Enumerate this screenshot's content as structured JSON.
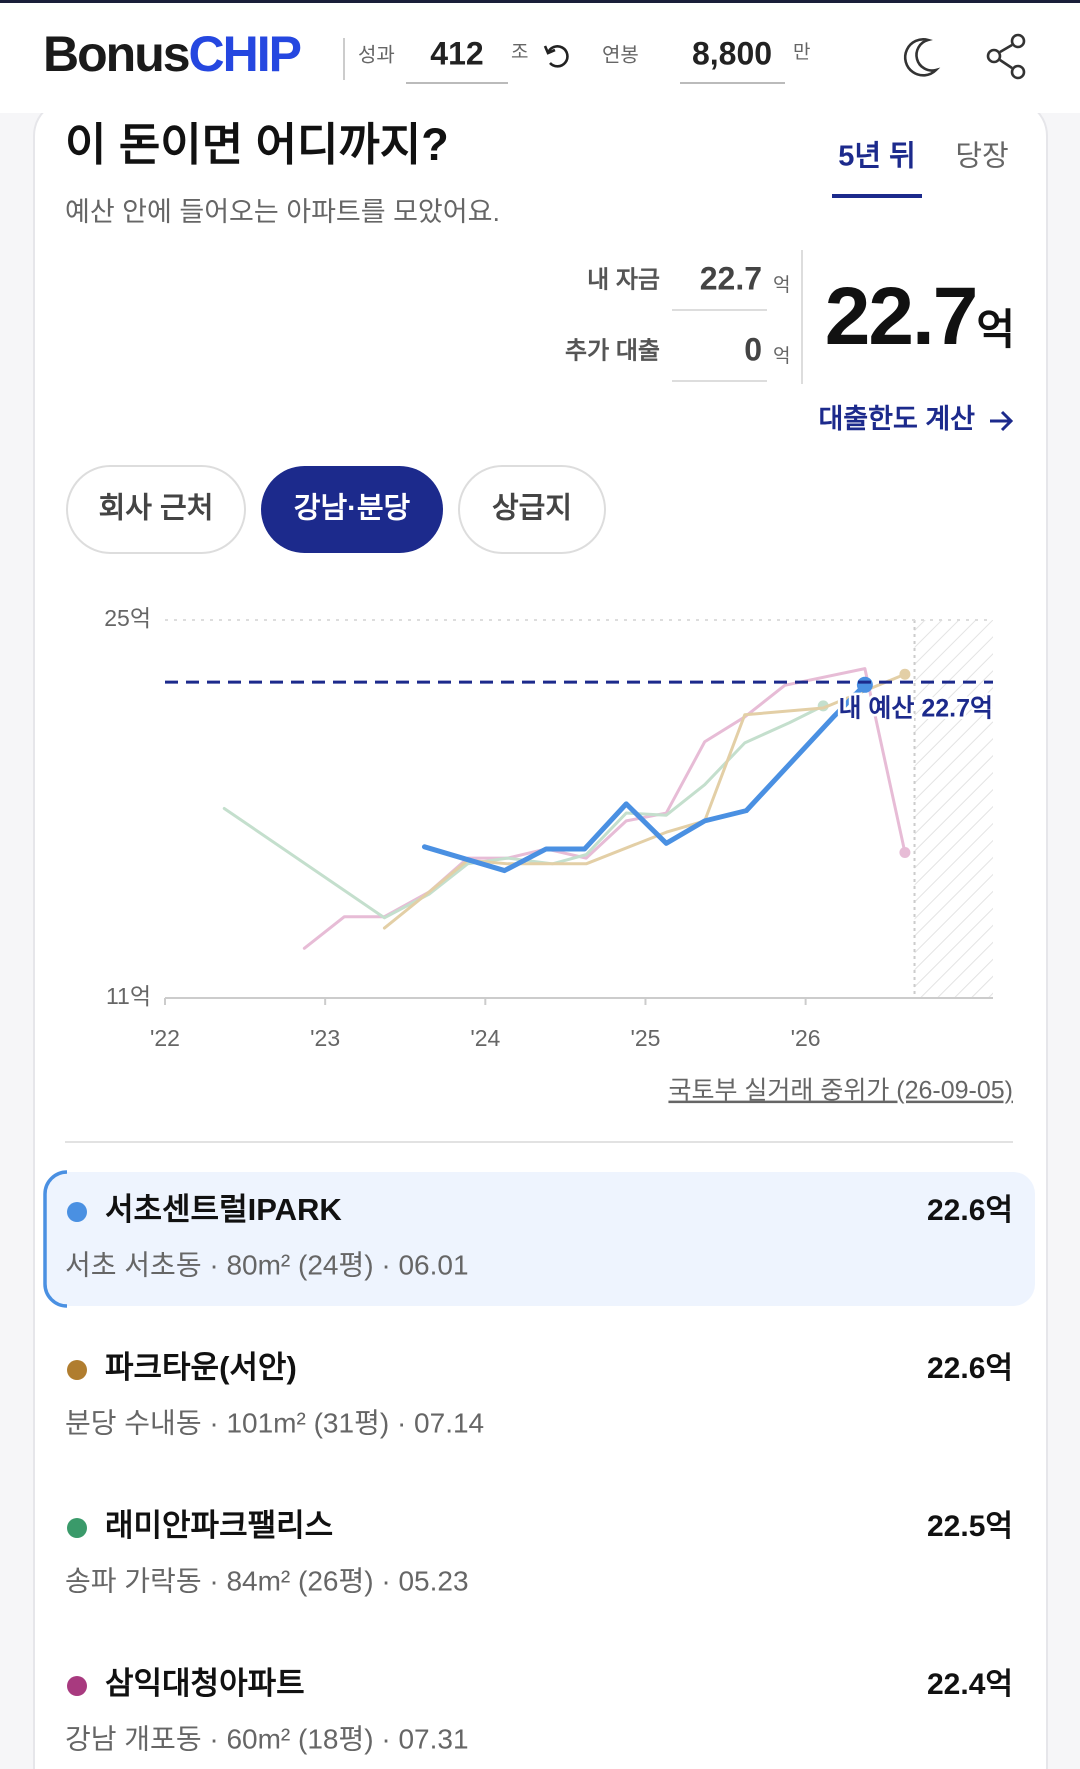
{
  "header": {
    "brand": [
      "Bonus",
      "CHIP"
    ],
    "perf_label": "성과",
    "perf_value": "412",
    "perf_unit": "조",
    "salary_label": "연봉",
    "salary_value": "8,800",
    "salary_unit": "만"
  },
  "card": {
    "title": "이 돈이면 어디까지?",
    "subtitle": "예산 안에 들어오는 아파트를 모았어요.",
    "tabs": [
      "5년 뒤",
      "당장"
    ],
    "funds": {
      "own_label": "내 자금",
      "own_value": "22.7",
      "own_unit": "억",
      "loan_label": "추가 대출",
      "loan_value": "0",
      "loan_unit": "억",
      "total_value": "22.7",
      "total_unit": "억",
      "link": "대출한도 계산"
    },
    "filters": [
      "회사 근처",
      "강남·분당",
      "상급지"
    ],
    "source": "국토부 실거래 중위가 (26-09-05)",
    "apartments": [
      {
        "name": "서초센트럴IPARK",
        "detail": "서초 서초동 · 80m² (24평) · 06.01",
        "price": "22.6억",
        "color": "#4a90e2"
      },
      {
        "name": "파크타운(서안)",
        "detail": "분당 수내동 · 101m² (31평) · 07.14",
        "price": "22.6억",
        "color": "#b07d2f"
      },
      {
        "name": "래미안파크팰리스",
        "detail": "송파 가락동 · 84m² (26평) · 05.23",
        "price": "22.5억",
        "color": "#3a9a6a"
      },
      {
        "name": "삼익대청아파트",
        "detail": "강남 개포동 · 60m² (18평) · 07.31",
        "price": "22.4억",
        "color": "#a83a7f"
      }
    ]
  },
  "chart_data": {
    "type": "line",
    "xlim": [
      2022,
      2027.17
    ],
    "xticks": [
      {
        "value": 2022,
        "label": "'22"
      },
      {
        "value": 2023,
        "label": "'23"
      },
      {
        "value": 2024,
        "label": "'24"
      },
      {
        "value": 2025,
        "label": "'25"
      },
      {
        "value": 2026,
        "label": "'26"
      }
    ],
    "ylim": [
      11,
      25
    ],
    "yticks": [
      {
        "value": 11,
        "label": "11억"
      },
      {
        "value": 25,
        "label": "25억"
      }
    ],
    "budget": {
      "value": 22.7,
      "label": "내 예산 22.7억"
    },
    "projection_start": 2026.68,
    "series": [
      {
        "color": "#4a90e2",
        "x": [
          2023.62,
          2024.12,
          2024.38,
          2024.62,
          2024.88,
          2025.13,
          2025.37,
          2025.63,
          2026.18,
          2026.37
        ],
        "values": [
          16.6,
          15.72,
          16.52,
          16.52,
          18.19,
          16.73,
          17.56,
          17.94,
          21.45,
          22.6
        ]
      },
      {
        "color": "#e3cfa6",
        "x": [
          2023.37,
          2023.65,
          2023.89,
          2024.14,
          2024.63,
          2025.13,
          2025.37,
          2025.62,
          2026.11,
          2026.62
        ],
        "values": [
          13.59,
          14.93,
          16.1,
          15.97,
          15.97,
          17.14,
          17.56,
          21.49,
          21.74,
          22.99
        ]
      },
      {
        "color": "#c4dfcd",
        "x": [
          2022.37,
          2023.37,
          2023.65,
          2023.89,
          2024.14,
          2024.42,
          2024.63,
          2024.88,
          2025.13,
          2025.37,
          2025.62,
          2025.9,
          2026.11
        ],
        "values": [
          18.02,
          13.97,
          14.85,
          15.97,
          16.18,
          15.97,
          16.31,
          17.85,
          17.77,
          18.9,
          20.45,
          21.2,
          21.82
        ]
      },
      {
        "color": "#e7bcd6",
        "x": [
          2022.87,
          2023.12,
          2023.37,
          2023.65,
          2023.89,
          2024.14,
          2024.38,
          2024.63,
          2024.88,
          2025.13,
          2025.37,
          2025.62,
          2025.87,
          2026.37,
          2026.62
        ],
        "values": [
          12.84,
          14.01,
          14.01,
          14.93,
          16.18,
          16.18,
          16.52,
          16.18,
          17.56,
          17.85,
          20.49,
          21.41,
          22.58,
          23.2,
          16.39
        ]
      }
    ]
  }
}
